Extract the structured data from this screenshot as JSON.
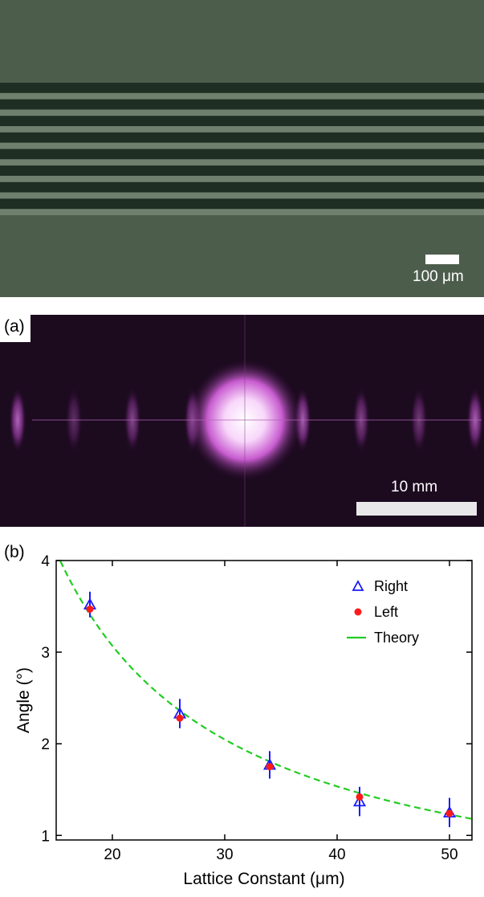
{
  "micrograph": {
    "scale_bar_label": "100 μm",
    "background_color": "#4a5a4a",
    "stripe_color": "#1f2e23",
    "stripe_count": 8
  },
  "panel_a": {
    "label": "(a)",
    "scale_bar_label": "10 mm",
    "glow_color": "#e07ae8"
  },
  "panel_b": {
    "label": "(b)"
  },
  "chart_data": {
    "type": "scatter",
    "xlabel": "Lattice Constant (μm)",
    "ylabel": "Angle (°)",
    "xlim": [
      15,
      52
    ],
    "ylim": [
      0.95,
      4
    ],
    "x_ticks": [
      20,
      30,
      40,
      50
    ],
    "y_ticks": [
      1,
      2,
      3,
      4
    ],
    "legend_position": "top-right",
    "series": [
      {
        "name": "Right",
        "marker": "open-triangle",
        "color": "#1a1aff",
        "x": [
          18,
          26,
          34,
          42,
          50
        ],
        "y": [
          3.52,
          2.33,
          1.77,
          1.37,
          1.25
        ],
        "yerr": [
          0.14,
          0.16,
          0.15,
          0.16,
          0.16
        ]
      },
      {
        "name": "Left",
        "marker": "filled-circle",
        "color": "#ff1a1a",
        "x": [
          18,
          26,
          34,
          42,
          50
        ],
        "y": [
          3.47,
          2.28,
          1.75,
          1.42,
          1.24
        ],
        "yerr": [
          0.13,
          0.15,
          0.15,
          0.16,
          0.16
        ]
      },
      {
        "name": "Theory",
        "line": "dashed",
        "color": "#22cc22",
        "formula_k": 61.4
      }
    ]
  }
}
